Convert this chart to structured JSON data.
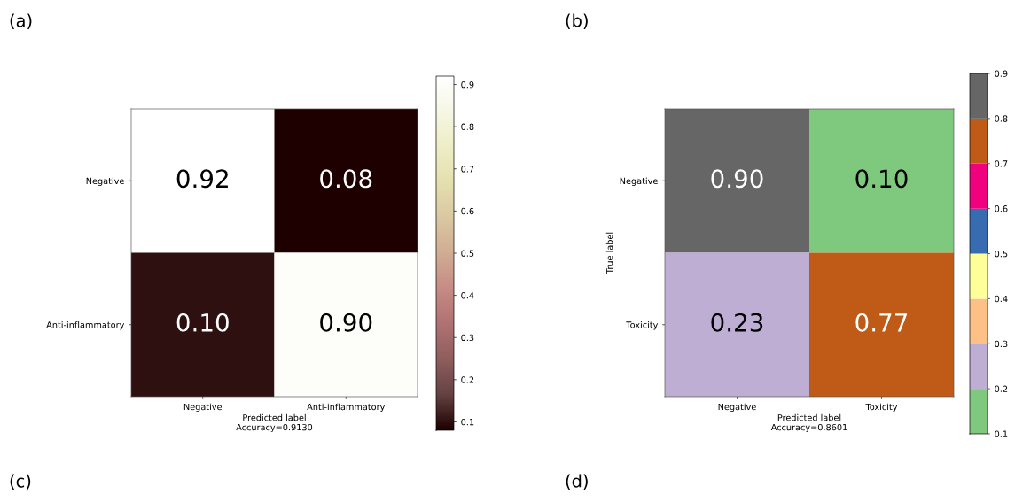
{
  "chart_data": [
    {
      "type": "heatmap",
      "title": "(a)",
      "xlabel": "Predicted label\nAccuracy=0.9130",
      "categories": [
        "Negative",
        "Anti-inflammatory"
      ],
      "y_categories": [
        "Negative",
        "Anti-inflammatory"
      ],
      "cells": [
        [
          0.92,
          0.08
        ],
        [
          0.1,
          0.9
        ]
      ],
      "cell_labels": [
        [
          "0.92",
          "0.08"
        ],
        [
          "0.10",
          "0.90"
        ]
      ],
      "clim": [
        0.08,
        0.92
      ],
      "cticks": [
        0.1,
        0.2,
        0.3,
        0.4,
        0.5,
        0.6,
        0.7,
        0.8,
        0.9
      ],
      "colors": [
        "#1e0000",
        "#654242",
        "#8f5d5d",
        "#af7272",
        "#c68b84",
        "#d0ac93",
        "#dac7a1",
        "#e4dfae",
        "#edeDc6",
        "#f6f6e4",
        "#ffffff"
      ]
    },
    {
      "type": "heatmap",
      "title": "(b)",
      "xlabel": "Predicted label\nAccuracy=0.8601",
      "ylabel": "True label",
      "categories": [
        "Negative",
        "Toxicity"
      ],
      "y_categories": [
        "Negative",
        "Toxicity"
      ],
      "cells": [
        [
          0.9,
          0.1
        ],
        [
          0.23,
          0.77
        ]
      ],
      "cell_labels": [
        [
          "0.90",
          "0.10"
        ],
        [
          "0.23",
          "0.77"
        ]
      ],
      "clim": [
        0.1,
        0.9
      ],
      "cticks": [
        0.1,
        0.2,
        0.3,
        0.4,
        0.5,
        0.6,
        0.7,
        0.8,
        0.9
      ],
      "colors": [
        "#7fc97f",
        "#beaed4",
        "#fdc086",
        "#ffff99",
        "#386cb0",
        "#f0027f",
        "#bf5b17",
        "#666666"
      ]
    },
    {
      "type": "other",
      "title": "(c)"
    },
    {
      "type": "other",
      "title": "(d)"
    }
  ]
}
